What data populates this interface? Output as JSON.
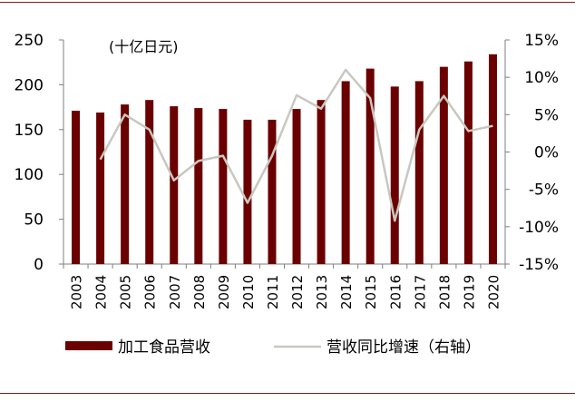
{
  "chart_data": {
    "type": "bar",
    "unit_note": "(十亿日元)",
    "categories": [
      "2003",
      "2004",
      "2005",
      "2006",
      "2007",
      "2008",
      "2009",
      "2010",
      "2011",
      "2012",
      "2013",
      "2014",
      "2015",
      "2016",
      "2017",
      "2018",
      "2019",
      "2020"
    ],
    "series": [
      {
        "name": "加工食品营收",
        "type": "bar",
        "axis": "left",
        "color": "#6b0000",
        "values": [
          171,
          169,
          178,
          183,
          176,
          174,
          173,
          161,
          161,
          173,
          183,
          204,
          218,
          198,
          204,
          220,
          226,
          234
        ]
      },
      {
        "name": "营收同比增速（右轴）",
        "type": "line",
        "axis": "right",
        "color": "#c8c8c0",
        "values": [
          null,
          -1.0,
          5.0,
          3.0,
          -3.8,
          -1.2,
          -0.5,
          -6.8,
          -0.5,
          7.6,
          5.8,
          11.0,
          7.2,
          -9.2,
          3.0,
          7.5,
          2.8,
          3.5
        ]
      }
    ],
    "y_left": {
      "min": 0,
      "max": 250,
      "ticks": [
        "0",
        "50",
        "100",
        "150",
        "200",
        "250"
      ]
    },
    "y_right": {
      "min": -15,
      "max": 15,
      "ticks": [
        "-15%",
        "-10%",
        "-5%",
        "0%",
        "5%",
        "10%",
        "15%"
      ]
    },
    "grid": false,
    "legend_position": "bottom"
  }
}
